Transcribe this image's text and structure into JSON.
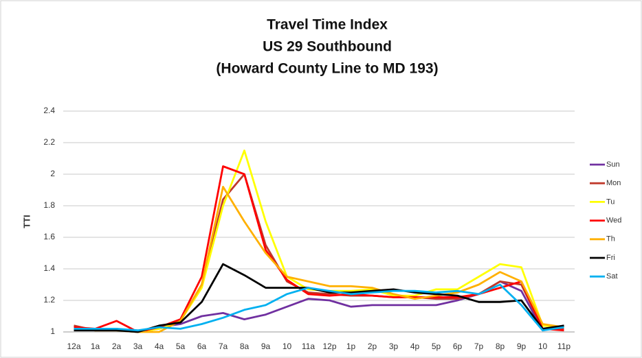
{
  "chart_data": {
    "type": "line",
    "title_lines": [
      "Travel Time Index",
      "US 29 Southbound",
      "(Howard County Line to MD 193)"
    ],
    "y_label": "TTI",
    "categories": [
      "12a",
      "1a",
      "2a",
      "3a",
      "4a",
      "5a",
      "6a",
      "7a",
      "8a",
      "9a",
      "10",
      "11a",
      "12p",
      "1p",
      "2p",
      "3p",
      "4p",
      "5p",
      "6p",
      "7p",
      "8p",
      "9p",
      "10",
      "11p"
    ],
    "ylim": [
      1,
      2.4
    ],
    "yticks": [
      1,
      1.2,
      1.4,
      1.6,
      1.8,
      2,
      2.2,
      2.4
    ],
    "grid": true,
    "legend": "right",
    "series": [
      {
        "name": "Sun",
        "color": "#7030a0",
        "values": [
          1.02,
          1.01,
          1.01,
          1.0,
          1.03,
          1.05,
          1.1,
          1.12,
          1.08,
          1.11,
          1.16,
          1.21,
          1.2,
          1.16,
          1.17,
          1.17,
          1.17,
          1.17,
          1.2,
          1.24,
          1.32,
          1.26,
          1.01,
          1.04
        ]
      },
      {
        "name": "Mon",
        "color": "#c0392b",
        "values": [
          1.04,
          1.01,
          1.01,
          1.0,
          1.02,
          1.07,
          1.3,
          1.84,
          2.0,
          1.55,
          1.32,
          1.25,
          1.24,
          1.23,
          1.23,
          1.22,
          1.22,
          1.21,
          1.21,
          1.24,
          1.32,
          1.3,
          1.02,
          1.02
        ]
      },
      {
        "name": "Tu",
        "color": "#ffff00",
        "values": [
          1.02,
          1.01,
          1.01,
          1.0,
          1.02,
          1.07,
          1.28,
          1.8,
          2.15,
          1.7,
          1.35,
          1.27,
          1.26,
          1.26,
          1.27,
          1.23,
          1.23,
          1.27,
          1.27,
          1.35,
          1.43,
          1.41,
          1.04,
          1.03
        ]
      },
      {
        "name": "Wed",
        "color": "#ff0000",
        "values": [
          1.03,
          1.02,
          1.07,
          1.0,
          1.03,
          1.08,
          1.35,
          2.05,
          2.0,
          1.52,
          1.33,
          1.24,
          1.23,
          1.24,
          1.23,
          1.22,
          1.22,
          1.22,
          1.22,
          1.24,
          1.28,
          1.32,
          1.02,
          1.01
        ]
      },
      {
        "name": "Th",
        "color": "#ffb000",
        "values": [
          1.02,
          1.01,
          1.02,
          1.0,
          1.0,
          1.07,
          1.3,
          1.92,
          1.7,
          1.5,
          1.35,
          1.32,
          1.29,
          1.29,
          1.28,
          1.24,
          1.21,
          1.23,
          1.25,
          1.3,
          1.38,
          1.32,
          1.05,
          1.03
        ]
      },
      {
        "name": "Fri",
        "color": "#000000",
        "values": [
          1.01,
          1.01,
          1.01,
          1.0,
          1.04,
          1.06,
          1.19,
          1.43,
          1.36,
          1.28,
          1.28,
          1.28,
          1.25,
          1.25,
          1.26,
          1.27,
          1.25,
          1.24,
          1.23,
          1.19,
          1.19,
          1.2,
          1.02,
          1.04
        ]
      },
      {
        "name": "Sat",
        "color": "#00b0f0",
        "values": [
          1.02,
          1.02,
          1.02,
          1.01,
          1.03,
          1.02,
          1.05,
          1.09,
          1.14,
          1.17,
          1.24,
          1.28,
          1.26,
          1.24,
          1.25,
          1.26,
          1.26,
          1.25,
          1.26,
          1.24,
          1.3,
          1.17,
          1.01,
          1.03
        ]
      }
    ]
  }
}
